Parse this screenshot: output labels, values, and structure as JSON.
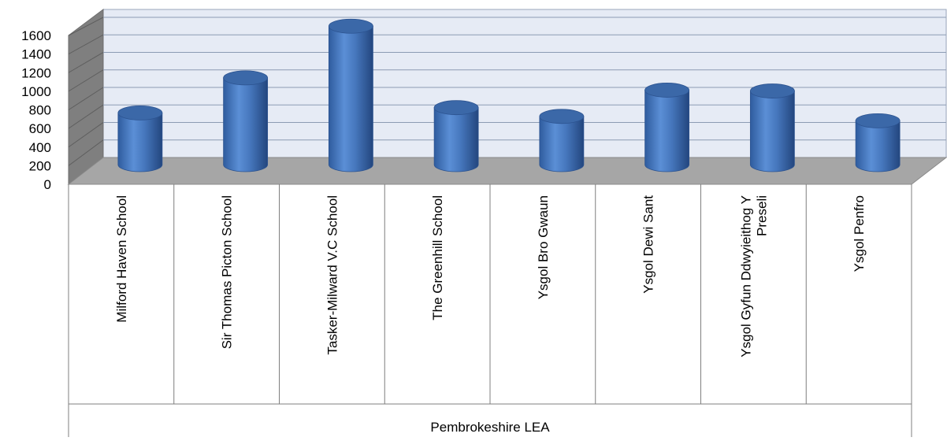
{
  "chart_data": {
    "type": "bar",
    "style": "3d-cylinder",
    "categories": [
      "Milford Haven School",
      "Sir Thomas Picton School",
      "Tasker-Milward V.C School",
      "The Greenhill School",
      "Ysgol Bro Gwaun",
      "Ysgol Dewi Sant",
      "Ysgol Gyfun Ddwyieithog Y Preseli",
      "Ysgol Penfro"
    ],
    "category_label_lines": [
      [
        "Milford Haven School"
      ],
      [
        "Sir Thomas Picton School"
      ],
      [
        "Tasker-Milward V.C School"
      ],
      [
        "The Greenhill School"
      ],
      [
        "Ysgol Bro Gwaun"
      ],
      [
        "Ysgol Dewi Sant"
      ],
      [
        "Ysgol Gyfun Ddwyieithog Y",
        "Preseli"
      ],
      [
        "Ysgol Penfro"
      ]
    ],
    "values": [
      590,
      990,
      1580,
      650,
      550,
      850,
      840,
      500
    ],
    "group_label": "Pembrokeshire LEA",
    "y_ticks": [
      0,
      200,
      400,
      600,
      800,
      1000,
      1200,
      1400,
      1600
    ],
    "ylim": [
      0,
      1600
    ],
    "grid": true,
    "legend": "none",
    "colors": {
      "bar": "#4a7bbf",
      "bar_dark": "#2c5390",
      "bar_top": "#3b68a8",
      "back_wall": "#e6ebf5",
      "side_wall": "#7f7f7f",
      "floor": "#a6a6a6",
      "grid": "#8c9bb3"
    }
  }
}
